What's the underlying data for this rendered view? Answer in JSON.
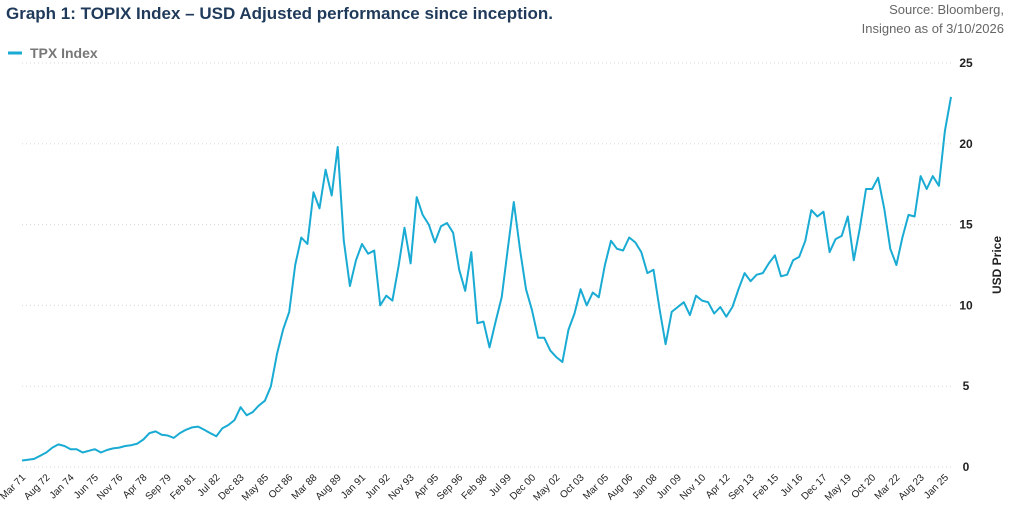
{
  "chart_data": {
    "type": "line",
    "title": "Graph 1: TOPIX Index – USD Adjusted performance since inception.",
    "source": [
      "Source: Bloomberg,",
      "Insigneo as of 3/10/2026"
    ],
    "y_label": "USD Price",
    "legend": "top-left",
    "grid": true,
    "ylim": [
      0,
      25
    ],
    "yticks": [
      0,
      5,
      10,
      15,
      20,
      25
    ],
    "categories": [
      "Mar 71",
      null,
      null,
      null,
      "Aug 72",
      null,
      null,
      null,
      "Jan 74",
      null,
      null,
      null,
      "Jun 75",
      null,
      null,
      null,
      "Nov 76",
      null,
      null,
      null,
      "Apr 78",
      null,
      null,
      null,
      "Sep 79",
      null,
      null,
      null,
      "Feb 81",
      null,
      null,
      null,
      "Jul 82",
      null,
      null,
      null,
      "Dec 83",
      null,
      null,
      null,
      "May 85",
      null,
      null,
      null,
      "Oct 86",
      null,
      null,
      null,
      "Mar 88",
      null,
      null,
      null,
      "Aug 89",
      null,
      null,
      null,
      "Jan 91",
      null,
      null,
      null,
      "Jun 92",
      null,
      null,
      null,
      "Nov 93",
      null,
      null,
      null,
      "Apr 95",
      null,
      null,
      null,
      "Sep 96",
      null,
      null,
      null,
      "Feb 98",
      null,
      null,
      null,
      "Jul 99",
      null,
      null,
      null,
      "Dec 00",
      null,
      null,
      null,
      "May 02",
      null,
      null,
      null,
      "Oct 03",
      null,
      null,
      null,
      "Mar 05",
      null,
      null,
      null,
      "Aug 06",
      null,
      null,
      null,
      "Jan 08",
      null,
      null,
      null,
      "Jun 09",
      null,
      null,
      null,
      "Nov 10",
      null,
      null,
      null,
      "Apr 12",
      null,
      null,
      null,
      "Sep 13",
      null,
      null,
      null,
      "Feb 15",
      null,
      null,
      null,
      "Jul 16",
      null,
      null,
      null,
      "Dec 17",
      null,
      null,
      null,
      "May 19",
      null,
      null,
      null,
      "Oct 20",
      null,
      null,
      null,
      "Mar 22",
      null,
      null,
      null,
      "Aug 23",
      null,
      null,
      null,
      "Jan 25",
      null
    ],
    "series": [
      {
        "name": "TPX Index",
        "color": "#19abd3",
        "values": [
          0.4,
          0.45,
          0.5,
          0.7,
          0.9,
          1.2,
          1.4,
          1.3,
          1.1,
          1.1,
          0.9,
          1.0,
          1.1,
          0.9,
          1.05,
          1.15,
          1.2,
          1.3,
          1.35,
          1.45,
          1.7,
          2.1,
          2.2,
          2.0,
          1.95,
          1.8,
          2.1,
          2.3,
          2.45,
          2.5,
          2.3,
          2.1,
          1.9,
          2.4,
          2.6,
          2.9,
          3.7,
          3.2,
          3.4,
          3.8,
          4.1,
          5.0,
          7.0,
          8.5,
          9.6,
          12.5,
          14.2,
          13.8,
          17.0,
          16.0,
          18.4,
          16.8,
          19.8,
          14.0,
          11.2,
          12.8,
          13.8,
          13.2,
          13.4,
          10.0,
          10.6,
          10.3,
          12.4,
          14.8,
          12.6,
          16.7,
          15.6,
          15.0,
          13.9,
          14.9,
          15.1,
          14.5,
          12.2,
          10.9,
          13.3,
          8.9,
          9.0,
          7.4,
          9.0,
          10.5,
          13.5,
          16.4,
          13.5,
          11.0,
          9.7,
          8.0,
          8.0,
          7.2,
          6.8,
          6.5,
          8.5,
          9.5,
          11.0,
          10.0,
          10.8,
          10.5,
          12.5,
          14.0,
          13.5,
          13.4,
          14.2,
          13.9,
          13.3,
          12.0,
          12.2,
          9.8,
          7.6,
          9.6,
          9.9,
          10.2,
          9.4,
          10.6,
          10.3,
          10.2,
          9.5,
          9.9,
          9.3,
          9.9,
          11.0,
          12.0,
          11.5,
          11.9,
          12.0,
          12.6,
          13.1,
          11.8,
          11.9,
          12.8,
          13.0,
          14.0,
          15.9,
          15.5,
          15.8,
          13.3,
          14.1,
          14.3,
          15.5,
          12.8,
          14.8,
          17.2,
          17.2,
          17.9,
          16.0,
          13.5,
          12.5,
          14.2,
          15.6,
          15.5,
          18.0,
          17.2,
          18.0,
          17.4,
          20.8,
          22.9
        ]
      }
    ]
  }
}
